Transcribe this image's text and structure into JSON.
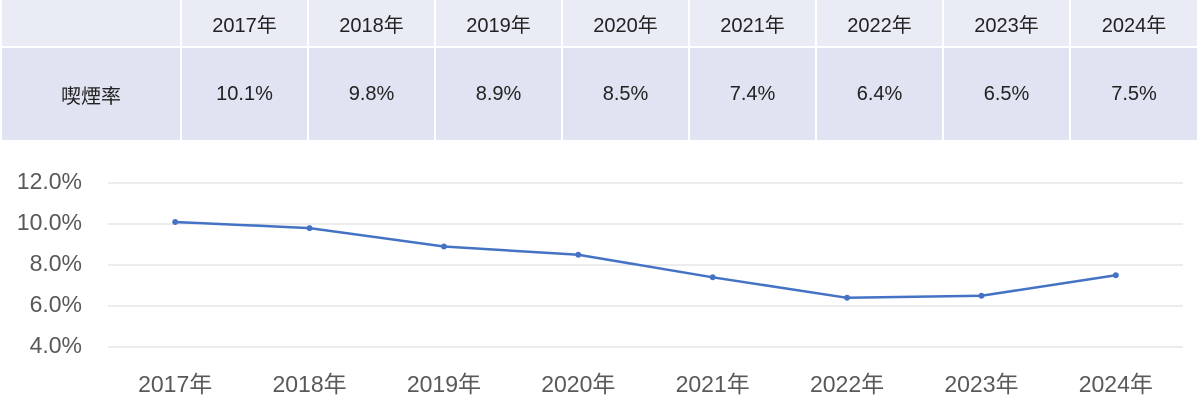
{
  "table": {
    "header": [
      "2017年",
      "2018年",
      "2019年",
      "2020年",
      "2021年",
      "2022年",
      "2023年",
      "2024年"
    ],
    "rows": [
      {
        "label": "喫煙率",
        "cells": [
          "10.1%",
          "9.8%",
          "8.9%",
          "8.5%",
          "7.4%",
          "6.4%",
          "6.5%",
          "7.5%"
        ]
      }
    ]
  },
  "chart_data": {
    "type": "line",
    "categories": [
      "2017年",
      "2018年",
      "2019年",
      "2020年",
      "2021年",
      "2022年",
      "2023年",
      "2024年"
    ],
    "series": [
      {
        "name": "喫煙率",
        "color": "#4472c4",
        "values": [
          10.1,
          9.8,
          8.9,
          8.5,
          7.4,
          6.4,
          6.5,
          7.5
        ]
      }
    ],
    "ylim": [
      4,
      12
    ],
    "yticks": [
      {
        "value": 4,
        "label": "4.0%"
      },
      {
        "value": 6,
        "label": "6.0%"
      },
      {
        "value": 8,
        "label": "8.0%"
      },
      {
        "value": 10,
        "label": "10.0%"
      },
      {
        "value": 12,
        "label": "12.0%"
      }
    ],
    "grid": true
  }
}
